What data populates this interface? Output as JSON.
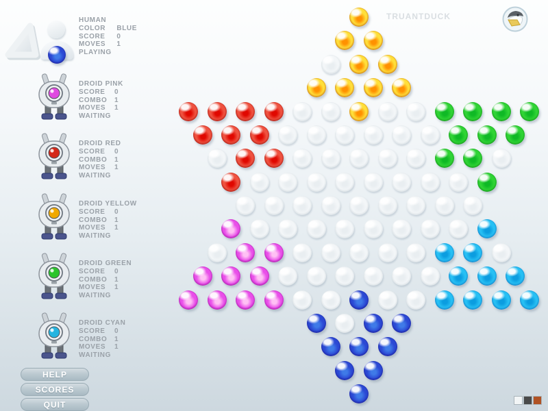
{
  "brand": {
    "name": "TRUANTDUCK"
  },
  "sidebar": {
    "human": {
      "name": "HUMAN",
      "stats": [
        {
          "label": "COLOR",
          "value": "BLUE"
        },
        {
          "label": "SCORE",
          "value": "0"
        },
        {
          "label": "MOVES",
          "value": "1"
        }
      ],
      "status": "PLAYING",
      "marble": "B"
    },
    "droids": [
      {
        "name": "DROID PINK",
        "eye": "#e049e0",
        "stats": [
          {
            "label": "SCORE",
            "value": "0"
          },
          {
            "label": "COMBO",
            "value": "1"
          },
          {
            "label": "MOVES",
            "value": "1"
          }
        ],
        "status": "WAITING"
      },
      {
        "name": "DROID RED",
        "eye": "#d42718",
        "stats": [
          {
            "label": "SCORE",
            "value": "0"
          },
          {
            "label": "COMBO",
            "value": "1"
          },
          {
            "label": "MOVES",
            "value": "1"
          }
        ],
        "status": "WAITING"
      },
      {
        "name": "DROID YELLOW",
        "eye": "#f0a800",
        "stats": [
          {
            "label": "SCORE",
            "value": "0"
          },
          {
            "label": "COMBO",
            "value": "1"
          },
          {
            "label": "MOVES",
            "value": "1"
          }
        ],
        "status": "WAITING"
      },
      {
        "name": "DROID GREEN",
        "eye": "#2cc42c",
        "stats": [
          {
            "label": "SCORE",
            "value": "0"
          },
          {
            "label": "COMBO",
            "value": "1"
          },
          {
            "label": "MOVES",
            "value": "1"
          }
        ],
        "status": "WAITING"
      },
      {
        "name": "DROID CYAN",
        "eye": "#25b4e0",
        "stats": [
          {
            "label": "SCORE",
            "value": "0"
          },
          {
            "label": "COMBO",
            "value": "1"
          },
          {
            "label": "MOVES",
            "value": "1"
          }
        ],
        "status": "WAITING"
      }
    ]
  },
  "buttons": [
    {
      "label": "HELP"
    },
    {
      "label": "SCORES"
    },
    {
      "label": "QUIT"
    }
  ],
  "theme_swatches": [
    "#f2f5f6",
    "#4a4a4a",
    "#b05224"
  ],
  "board": {
    "rows": [
      "Y",
      "YY",
      "_YY",
      "YYYY",
      "RRRR__Y__GGGG",
      "RRR______GGG",
      "_RR_____GG_",
      "R________G",
      "_________",
      "M________C",
      "_MM_____CC_",
      "MMM______CCC",
      "MMMM__B__CCCC",
      "B_BB",
      "BBB",
      "BB",
      "B"
    ],
    "palette": {
      "Y": {
        "color_name": "yellow",
        "rim": "#b34700",
        "body": "#ffdf3a",
        "core": "#ff9100"
      },
      "R": {
        "color_name": "red",
        "rim": "#8f0500",
        "body": "#ef5240",
        "core": "#e00800"
      },
      "G": {
        "color_name": "green",
        "rim": "#0b7d10",
        "body": "#30d435",
        "core": "#0fb925"
      },
      "M": {
        "color_name": "magenta",
        "rim": "#900a90",
        "body": "#e94fe9",
        "core": "#ffc0f4"
      },
      "C": {
        "color_name": "cyan",
        "rim": "#0a65b4",
        "body": "#27c0f4",
        "core": "#0b9de0"
      },
      "B": {
        "color_name": "blue",
        "rim": "#1a1489",
        "body": "#2b49d4",
        "core": "#3f7ae8"
      },
      "_": {
        "color_name": "empty",
        "rim": "#ccd5da",
        "body": "#f3f6f8",
        "core": "#e9eef1"
      }
    }
  }
}
